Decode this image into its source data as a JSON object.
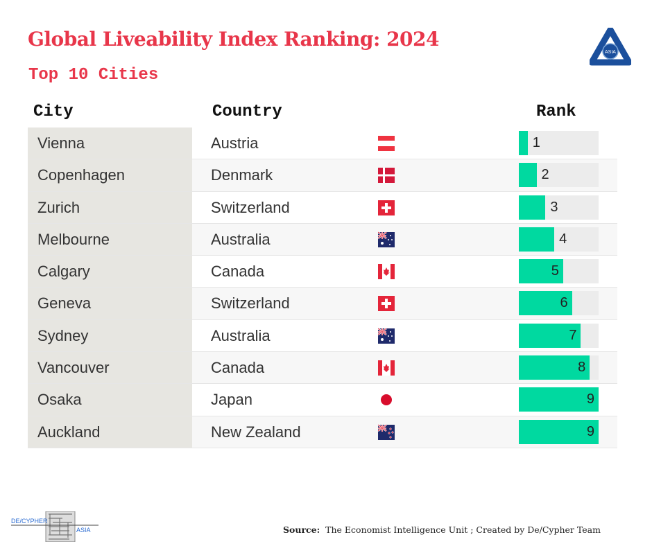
{
  "title": "Global Liveability Index Ranking:  2024",
  "subtitle": "Top 10 Cities",
  "logo_text": "ASIA",
  "headers": {
    "city": "City",
    "country": "Country",
    "rank": "Rank"
  },
  "source_label": "Source:",
  "source_text": "The Economist Intelligence Unit ; Created by De/Cypher Team",
  "footer_logo": {
    "left": "DE/CYPHER",
    "right": "ASIA"
  },
  "colors": {
    "title": "#e8364a",
    "bar": "#00d9a0",
    "track": "#ececec",
    "city_bg": "#e7e6e1"
  },
  "chart_data": {
    "type": "table",
    "title": "Global Liveability Index Ranking: 2024",
    "columns": [
      "City",
      "Country",
      "Rank"
    ],
    "rank_max": 9,
    "rows": [
      {
        "city": "Vienna",
        "country": "Austria",
        "flag": "austria",
        "rank": 1
      },
      {
        "city": "Copenhagen",
        "country": "Denmark",
        "flag": "denmark",
        "rank": 2
      },
      {
        "city": "Zurich",
        "country": "Switzerland",
        "flag": "switzerland",
        "rank": 3
      },
      {
        "city": "Melbourne",
        "country": "Australia",
        "flag": "australia",
        "rank": 4
      },
      {
        "city": "Calgary",
        "country": "Canada",
        "flag": "canada",
        "rank": 5
      },
      {
        "city": "Geneva",
        "country": "Switzerland",
        "flag": "switzerland",
        "rank": 6
      },
      {
        "city": "Sydney",
        "country": "Australia",
        "flag": "australia",
        "rank": 7
      },
      {
        "city": "Vancouver",
        "country": "Canada",
        "flag": "canada",
        "rank": 8
      },
      {
        "city": "Osaka",
        "country": "Japan",
        "flag": "japan",
        "rank": 9
      },
      {
        "city": "Auckland",
        "country": "New Zealand",
        "flag": "new-zealand",
        "rank": 9
      }
    ]
  }
}
